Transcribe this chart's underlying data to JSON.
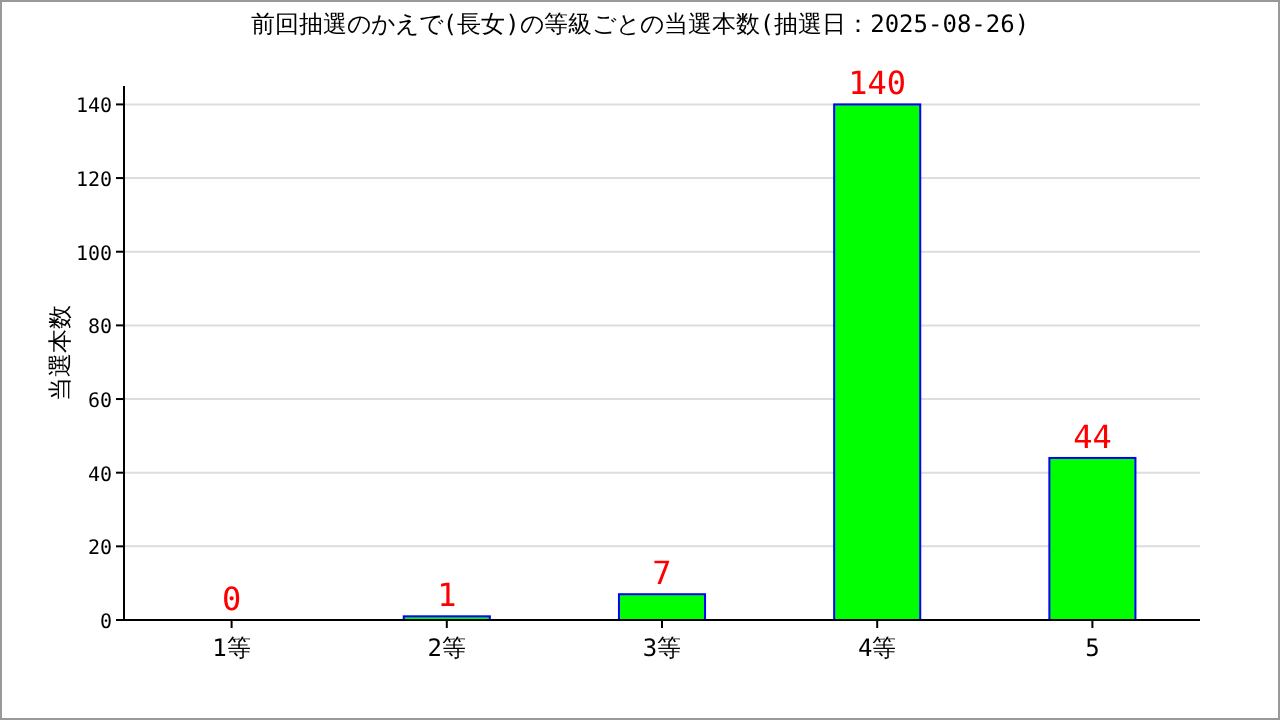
{
  "chart_data": {
    "type": "bar",
    "title": "前回抽選のかえで(長女)の等級ごとの当選本数(抽選日：2025-08-26)",
    "ylabel": "当選本数",
    "categories": [
      "1等",
      "2等",
      "3等",
      "4等",
      "5"
    ],
    "values": [
      0,
      1,
      7,
      140,
      44
    ],
    "color": "#00ff00",
    "ylim": [
      0,
      145
    ],
    "yticks": [
      0,
      20,
      40,
      60,
      80,
      100,
      120,
      140
    ],
    "grid": "y",
    "data_labels": true
  }
}
